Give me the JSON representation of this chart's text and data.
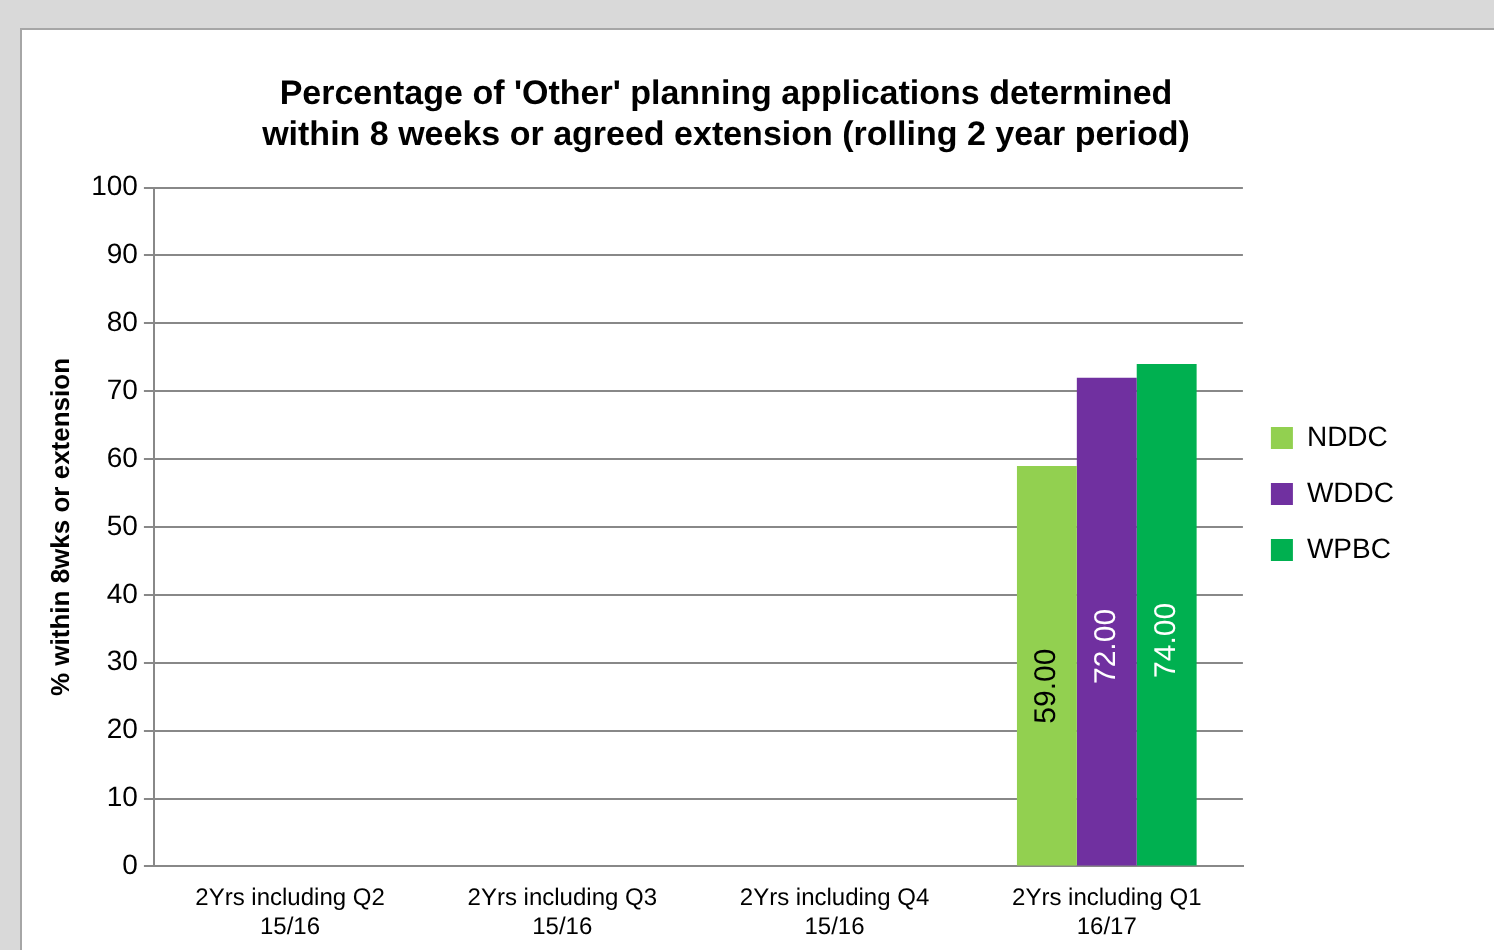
{
  "chart_data": {
    "type": "bar",
    "title": "Percentage of 'Other' planning applications determined within 8 weeks or agreed extension (rolling 2 year period)",
    "ylabel": "% within 8wks or extension",
    "categories": [
      "2Yrs including Q2 15/16",
      "2Yrs including Q3 15/16",
      "2Yrs including Q4 15/16",
      "2Yrs including Q1 16/17"
    ],
    "series": [
      {
        "name": "NDDC",
        "color": "#92d050",
        "values": [
          null,
          null,
          null,
          59
        ],
        "value_labels": [
          null,
          null,
          null,
          "59.00"
        ]
      },
      {
        "name": "WDDC",
        "color": "#7030a0",
        "values": [
          null,
          null,
          null,
          72
        ],
        "value_labels": [
          null,
          null,
          null,
          "72.00"
        ]
      },
      {
        "name": "WPBC",
        "color": "#00b050",
        "values": [
          null,
          null,
          null,
          74
        ],
        "value_labels": [
          null,
          null,
          null,
          "74.00"
        ]
      }
    ],
    "ylim": [
      0,
      100
    ],
    "yticks": [
      0,
      10,
      20,
      30,
      40,
      50,
      60,
      70,
      80,
      90,
      100
    ],
    "grid": "y",
    "legend": "right"
  }
}
